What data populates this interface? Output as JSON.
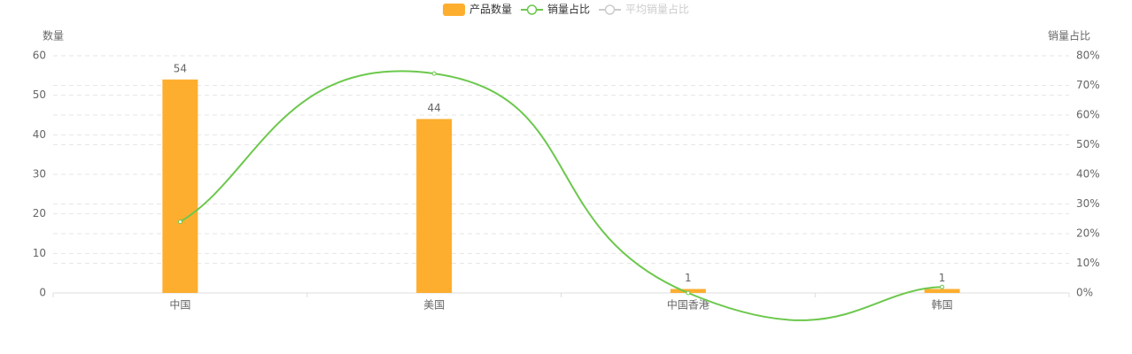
{
  "chart_data": {
    "type": "bar-line",
    "categories": [
      "中国",
      "美国",
      "中国香港",
      "韩国"
    ],
    "series": [
      {
        "name": "产品数量",
        "type": "bar",
        "color": "#fdae2f",
        "values": [
          54,
          44,
          1,
          1
        ]
      },
      {
        "name": "销量占比",
        "type": "line",
        "axis": "y2",
        "color": "#6cc84c",
        "values": [
          24,
          74,
          0,
          2
        ]
      },
      {
        "name": "平均销量占比",
        "type": "line",
        "axis": "y2",
        "color": "#cccccc",
        "visible": false
      }
    ],
    "ylabel": "数量",
    "y2label": "销量占比",
    "ylim": [
      0,
      60
    ],
    "yticks": [
      0,
      10,
      20,
      30,
      40,
      50,
      60
    ],
    "y2lim": [
      0,
      80
    ],
    "y2ticks": [
      {
        "value": 0,
        "label": "0%"
      },
      {
        "value": 10,
        "label": "10%"
      },
      {
        "value": 20,
        "label": "20%"
      },
      {
        "value": 30,
        "label": "30%"
      },
      {
        "value": 40,
        "label": "40%"
      },
      {
        "value": 50,
        "label": "50%"
      },
      {
        "value": 60,
        "label": "60%"
      },
      {
        "value": 70,
        "label": "70%"
      },
      {
        "value": 80,
        "label": "80%"
      }
    ],
    "grid": true,
    "legend": "top"
  }
}
